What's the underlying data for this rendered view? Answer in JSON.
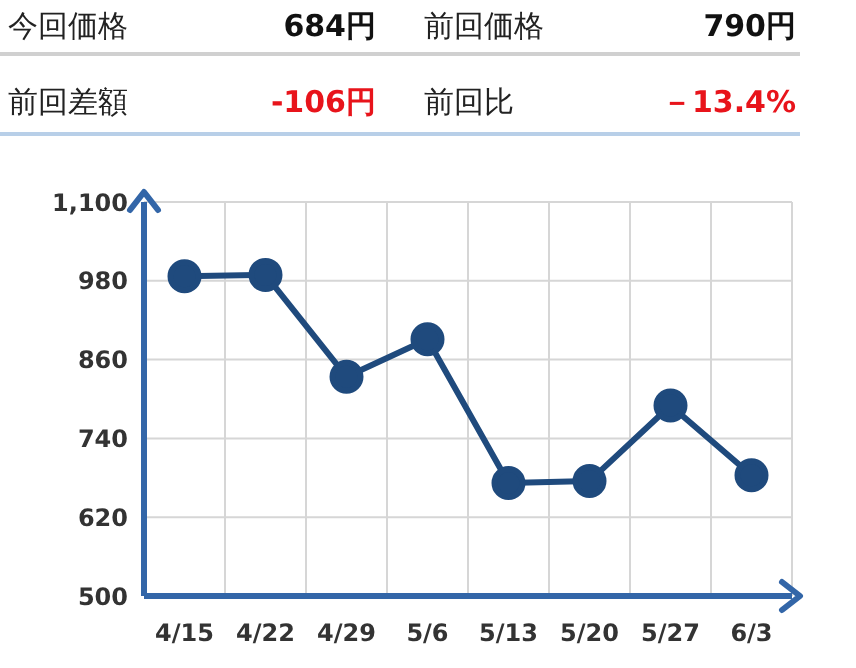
{
  "chart_data": {
    "type": "line",
    "annotations": [
      "今回価格",
      "684円",
      "前回価格",
      "790円",
      "前回差額",
      "-106円",
      "前回比",
      "－13.4%"
    ],
    "categories": [
      "4/15",
      "4/22",
      "4/29",
      "5/6",
      "5/13",
      "5/20",
      "5/27",
      "6/3"
    ],
    "series": [
      {
        "color": "#1f4a7d",
        "values": [
          987,
          989,
          834,
          891,
          672,
          675,
          790,
          684
        ]
      }
    ],
    "ylim": [
      500,
      1100
    ],
    "yticks": [
      500,
      620,
      740,
      860,
      980,
      {
        "value": 1100,
        "label": "1,100"
      }
    ],
    "grid": true,
    "legend": false,
    "marker": "circle",
    "line_style": "solid"
  }
}
